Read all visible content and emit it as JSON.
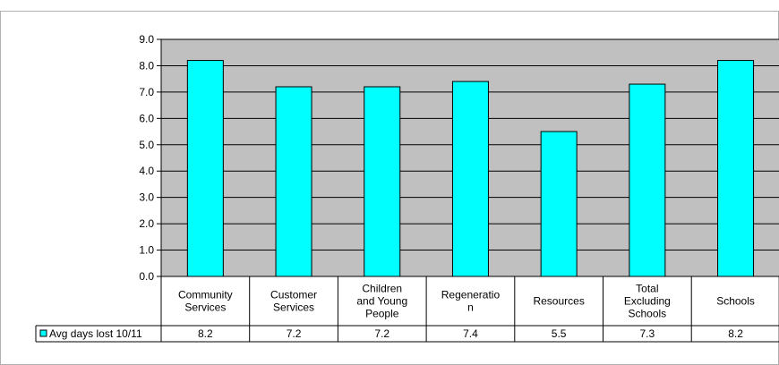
{
  "chart_data": {
    "type": "bar",
    "categories": [
      [
        "Community",
        "Services"
      ],
      [
        "Customer",
        "Services"
      ],
      [
        "Children",
        "and Young",
        "People"
      ],
      [
        "Regeneratio",
        "n"
      ],
      [
        "Resources"
      ],
      [
        "Total",
        "Excluding",
        "Schools"
      ],
      [
        "Schools"
      ]
    ],
    "series": [
      {
        "name": "Avg days lost 10/11",
        "values": [
          8.2,
          7.2,
          7.2,
          7.4,
          5.5,
          7.3,
          8.2
        ],
        "color": "#00FFFF"
      }
    ],
    "table_values": [
      "8.2",
      "7.2",
      "7.2",
      "7.4",
      "5.5",
      "7.3",
      "8.2"
    ],
    "ylim": [
      0,
      9
    ],
    "y_ticks": [
      "0.0",
      "1.0",
      "2.0",
      "3.0",
      "4.0",
      "5.0",
      "6.0",
      "7.0",
      "8.0",
      "9.0"
    ],
    "grid": true,
    "plot_background": "#C0C0C0",
    "legend": "data-table-left"
  }
}
